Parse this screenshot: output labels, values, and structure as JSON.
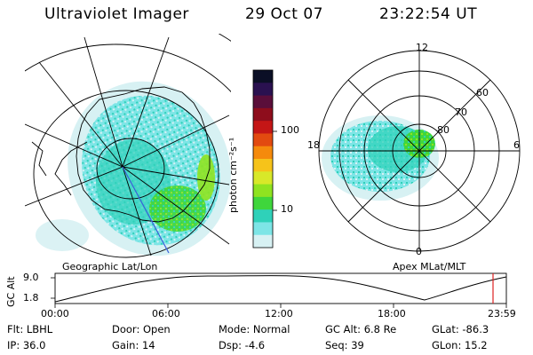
{
  "header": {
    "title": "Ultraviolet Imager",
    "date": "29 Oct 07",
    "time": "23:22:54 UT"
  },
  "colorbar": {
    "label": "photon cm⁻²s⁻¹",
    "ticks": [
      "100",
      "10"
    ],
    "colors": [
      "#0b0f26",
      "#2a1150",
      "#5a0e3a",
      "#8e0d1c",
      "#c41616",
      "#e24a10",
      "#f58a0c",
      "#f6c31a",
      "#d8e829",
      "#8fe320",
      "#3fd63c",
      "#2fd1b9",
      "#7de5e6",
      "#d7f1f3"
    ]
  },
  "geo_map": {
    "caption": "Geographic Lat/Lon"
  },
  "polar_map": {
    "caption": "Apex MLat/MLT",
    "mlt_labels": {
      "top": "12",
      "left": "18",
      "right": "6",
      "bottom": "0"
    },
    "lat_labels": [
      "60",
      "70",
      "80"
    ]
  },
  "altitude_plot": {
    "ylabel": "GC Alt",
    "yticks": [
      "9.0",
      "1.8"
    ],
    "xticks": [
      "00:00",
      "06:00",
      "12:00",
      "18:00",
      "23:59"
    ],
    "marker_color": "#dd2222"
  },
  "footer": {
    "filter": "Flt: LBHL",
    "door": "Door: Open",
    "mode": "Mode: Normal",
    "gc_alt": "GC Alt: 6.8 Re",
    "glat": "GLat: -86.3",
    "ip": "IP: 36.0",
    "gain": "Gain: 14",
    "dsp": "Dsp:    -4.6",
    "seq": "Seq: 39",
    "glon": "GLon:  15.2"
  }
}
